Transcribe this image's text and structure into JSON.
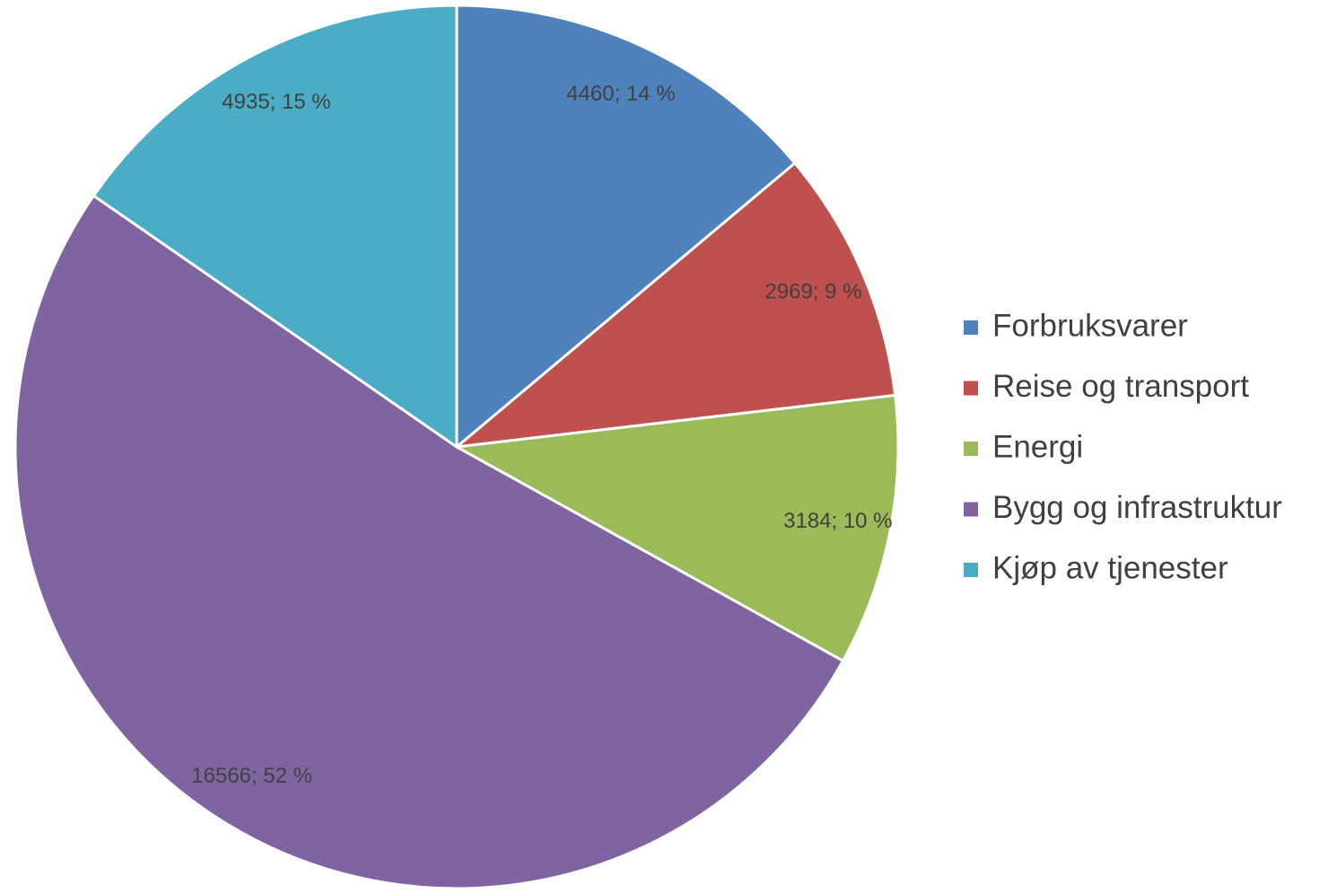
{
  "chart_data": {
    "type": "pie",
    "categories": [
      "Forbruksvarer",
      "Reise og transport",
      "Energi",
      "Bygg og infrastruktur",
      "Kjøp av tjenester"
    ],
    "values": [
      4460,
      2969,
      3184,
      16566,
      4935
    ],
    "value_labels": [
      "4460; 14 %",
      "2969; 9 %",
      "3184; 10 %",
      "16566; 52 %",
      "4935; 15 %"
    ],
    "colors": [
      "#4f81bd",
      "#c0504d",
      "#9bbb59",
      "#8064a2",
      "#4bacc6"
    ],
    "legend": "right"
  }
}
